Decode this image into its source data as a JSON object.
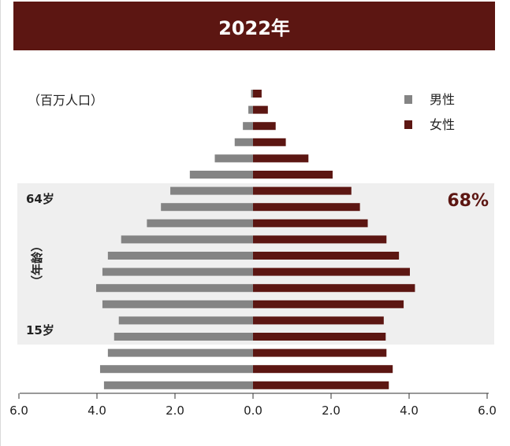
{
  "header": {
    "title": "2022年"
  },
  "colors": {
    "male": "#848484",
    "female": "#5c1612",
    "header_bg": "#5c1612",
    "band_bg": "#efefef"
  },
  "chart_data": {
    "type": "bar",
    "subtype": "population-pyramid",
    "title": "2022年",
    "unit_label": "（百万人口）",
    "ylabel": "（年龄）",
    "xlim": [
      -6,
      6
    ],
    "xticks": [
      "6.0",
      "4.0",
      "2.0",
      "0.0",
      "2.0",
      "4.0",
      "6.0"
    ],
    "legend": {
      "placement": "top-right",
      "entries": [
        "男性",
        "女性"
      ]
    },
    "series": [
      {
        "name": "男性",
        "values": [
          0.05,
          0.12,
          0.26,
          0.47,
          0.98,
          1.62,
          2.12,
          2.36,
          2.72,
          3.38,
          3.72,
          3.86,
          4.02,
          3.86,
          3.44,
          3.56,
          3.72,
          3.92,
          3.82
        ]
      },
      {
        "name": "女性",
        "values": [
          0.22,
          0.38,
          0.58,
          0.84,
          1.42,
          2.04,
          2.52,
          2.74,
          2.94,
          3.42,
          3.74,
          4.02,
          4.15,
          3.86,
          3.35,
          3.4,
          3.42,
          3.58,
          3.48
        ]
      }
    ],
    "annotations": {
      "band": {
        "from_label": "64岁",
        "to_label": "15岁",
        "value_text": "68%"
      }
    }
  }
}
